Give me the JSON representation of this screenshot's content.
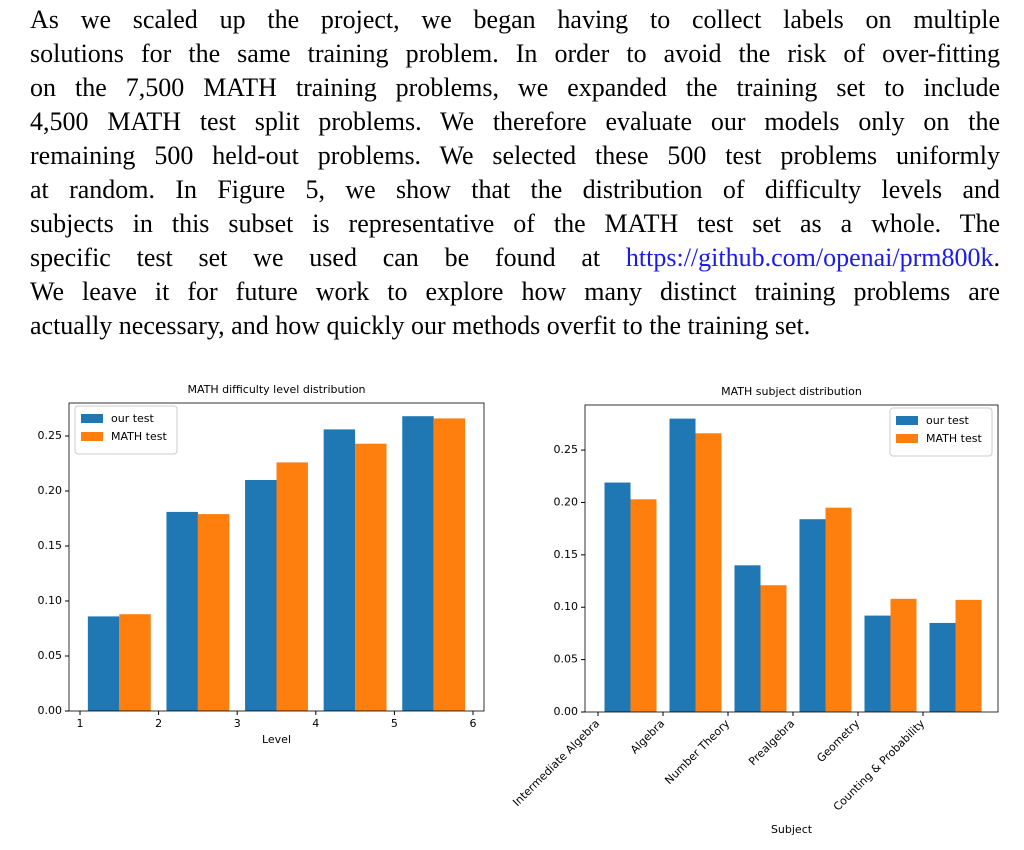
{
  "paragraph": {
    "lines": [
      "As we scaled up the project, we began having to collect labels on multiple",
      "solutions for the same training problem. In order to avoid the risk of over-fitting",
      "on the 7,500 MATH training problems, we expanded the training set to include",
      "4,500 MATH test split problems. We therefore evaluate our models only on the",
      "remaining 500 held-out problems. We selected these 500 test problems uniformly",
      "at random. In Figure 5, we show that the distribution of difficulty levels and",
      "subjects in this subset is representative of the MATH test set as a whole. The",
      {
        "text": "specific test set we used can be found at",
        "link": "https://github.com/openai/prm800k",
        "end": "."
      },
      "We leave it for future work to explore how many distinct training problems are",
      "actually necessary, and how quickly our methods overfit to the training set."
    ]
  },
  "chart_data": [
    {
      "type": "histogram",
      "title": "MATH difficulty level distribution",
      "x_label": "Level",
      "bins": [
        1,
        2,
        3,
        4,
        5,
        6
      ],
      "series": [
        {
          "name": "our test",
          "color": "#1f77b4",
          "values": [
            0.086,
            0.181,
            0.21,
            0.256,
            0.268
          ]
        },
        {
          "name": "MATH test",
          "color": "#ff7f0e",
          "values": [
            0.088,
            0.179,
            0.226,
            0.243,
            0.266
          ]
        }
      ],
      "xlim": [
        0.86,
        6.14
      ],
      "xticks": [
        1,
        2,
        3,
        4,
        5,
        6
      ],
      "ylim": [
        0,
        0.28
      ],
      "yticks": [
        {
          "value": 0,
          "label": "0.00"
        },
        {
          "value": 0.05,
          "label": "0.05"
        },
        {
          "value": 0.1,
          "label": "0.10"
        },
        {
          "value": 0.15,
          "label": "0.15"
        },
        {
          "value": 0.2,
          "label": "0.20"
        },
        {
          "value": 0.25,
          "label": "0.25"
        }
      ],
      "legend": "upper-left"
    },
    {
      "type": "bar",
      "title": "MATH subject distribution",
      "x_label": "Subject",
      "categories": [
        "Intermediate Algebra",
        "Algebra",
        "Number Theory",
        "Prealgebra",
        "Geometry",
        "Counting & Probability"
      ],
      "series": [
        {
          "name": "our test",
          "color": "#1f77b4",
          "values": [
            0.219,
            0.28,
            0.14,
            0.184,
            0.092,
            0.085
          ]
        },
        {
          "name": "MATH test",
          "color": "#ff7f0e",
          "values": [
            0.203,
            0.266,
            0.121,
            0.195,
            0.108,
            0.107
          ]
        }
      ],
      "ylim": [
        0,
        0.293
      ],
      "yticks": [
        {
          "value": 0,
          "label": "0.00"
        },
        {
          "value": 0.05,
          "label": "0.05"
        },
        {
          "value": 0.1,
          "label": "0.10"
        },
        {
          "value": 0.15,
          "label": "0.15"
        },
        {
          "value": 0.2,
          "label": "0.20"
        },
        {
          "value": 0.25,
          "label": "0.25"
        }
      ],
      "legend": "upper-right"
    }
  ]
}
